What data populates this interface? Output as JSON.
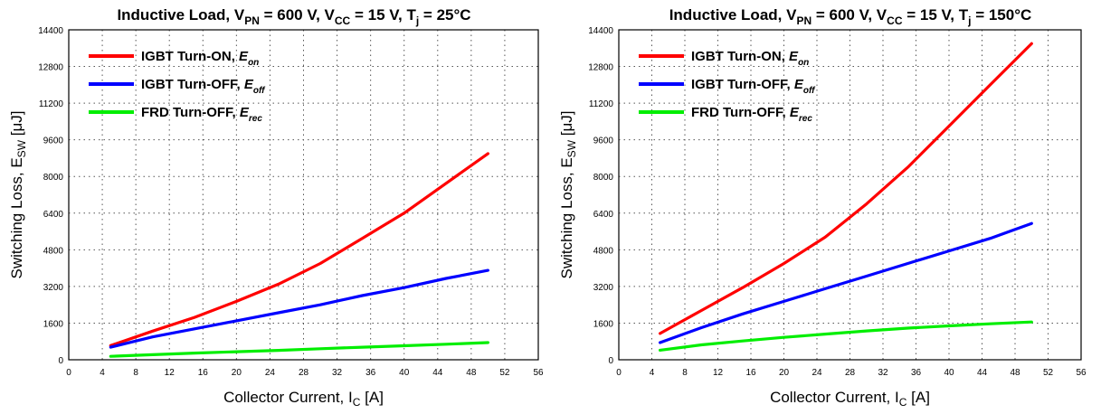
{
  "chart_data": [
    {
      "type": "line",
      "title": {
        "main": "Inductive Load, V",
        "vpn_sub": "PN",
        "vpn_value": " = 600 V, V",
        "vcc_sub": "CC",
        "vcc_value": " = 15 V, T",
        "tj_sub": "j",
        "tj_value": " = 25°C"
      },
      "xlabel": {
        "main": "Collector Current, I",
        "sub": "C",
        "unit": " [A]"
      },
      "ylabel": {
        "main": "Switching Loss, E",
        "sub": "SW",
        "unit": " [μJ]"
      },
      "xlim": [
        0,
        56
      ],
      "ylim": [
        0,
        14400
      ],
      "x_ticks": [
        "0",
        "4",
        "8",
        "12",
        "16",
        "20",
        "24",
        "28",
        "32",
        "36",
        "40",
        "44",
        "48",
        "52",
        "56"
      ],
      "y_ticks": [
        "0",
        "1600",
        "3200",
        "4800",
        "6400",
        "8000",
        "9600",
        "11200",
        "12800",
        "14400"
      ],
      "grid": true,
      "legend_position": "top-left",
      "series": [
        {
          "name": "IGBT Turn-ON, ",
          "symbol": "E",
          "symbol_sub": "on",
          "color": "#ff0000",
          "x": [
            5,
            10,
            15,
            20,
            25,
            30,
            35,
            40,
            45,
            50
          ],
          "y": [
            620,
            1250,
            1850,
            2550,
            3300,
            4200,
            5300,
            6400,
            7700,
            9000
          ]
        },
        {
          "name": "IGBT Turn-OFF, ",
          "symbol": "E",
          "symbol_sub": "off",
          "color": "#0000ff",
          "x": [
            5,
            10,
            15,
            20,
            25,
            30,
            35,
            40,
            45,
            50
          ],
          "y": [
            550,
            1000,
            1350,
            1700,
            2050,
            2400,
            2800,
            3150,
            3550,
            3900
          ]
        },
        {
          "name": "FRD Turn-OFF, ",
          "symbol": "E",
          "symbol_sub": "rec",
          "color": "#00ee00",
          "x": [
            5,
            10,
            15,
            20,
            25,
            30,
            35,
            40,
            45,
            50
          ],
          "y": [
            150,
            220,
            290,
            350,
            410,
            480,
            550,
            610,
            680,
            750
          ]
        }
      ]
    },
    {
      "type": "line",
      "title": {
        "main": "Inductive Load, V",
        "vpn_sub": "PN",
        "vpn_value": " = 600 V, V",
        "vcc_sub": "CC",
        "vcc_value": " = 15 V, T",
        "tj_sub": "j",
        "tj_value": " = 150°C"
      },
      "xlabel": {
        "main": "Collector Current, I",
        "sub": "C",
        "unit": " [A]"
      },
      "ylabel": {
        "main": "Switching Loss, E",
        "sub": "SW",
        "unit": " [μJ]"
      },
      "xlim": [
        0,
        56
      ],
      "ylim": [
        0,
        14400
      ],
      "x_ticks": [
        "0",
        "4",
        "8",
        "12",
        "16",
        "20",
        "24",
        "28",
        "32",
        "36",
        "40",
        "44",
        "48",
        "52",
        "56"
      ],
      "y_ticks": [
        "0",
        "1600",
        "3200",
        "4800",
        "6400",
        "8000",
        "9600",
        "11200",
        "12800",
        "14400"
      ],
      "grid": true,
      "legend_position": "top-left",
      "series": [
        {
          "name": "IGBT Turn-ON, ",
          "symbol": "E",
          "symbol_sub": "on",
          "color": "#ff0000",
          "x": [
            5,
            10,
            15,
            20,
            25,
            30,
            35,
            40,
            45,
            50
          ],
          "y": [
            1150,
            2150,
            3150,
            4200,
            5350,
            6800,
            8400,
            10200,
            12000,
            13800
          ]
        },
        {
          "name": "IGBT Turn-OFF, ",
          "symbol": "E",
          "symbol_sub": "off",
          "color": "#0000ff",
          "x": [
            5,
            10,
            15,
            20,
            25,
            30,
            35,
            40,
            45,
            50
          ],
          "y": [
            750,
            1400,
            2000,
            2550,
            3100,
            3650,
            4200,
            4750,
            5300,
            5950
          ]
        },
        {
          "name": "FRD Turn-OFF, ",
          "symbol": "E",
          "symbol_sub": "rec",
          "color": "#00ee00",
          "x": [
            5,
            10,
            15,
            20,
            25,
            30,
            35,
            40,
            45,
            50
          ],
          "y": [
            420,
            650,
            820,
            980,
            1120,
            1260,
            1380,
            1480,
            1570,
            1650
          ]
        }
      ]
    }
  ]
}
